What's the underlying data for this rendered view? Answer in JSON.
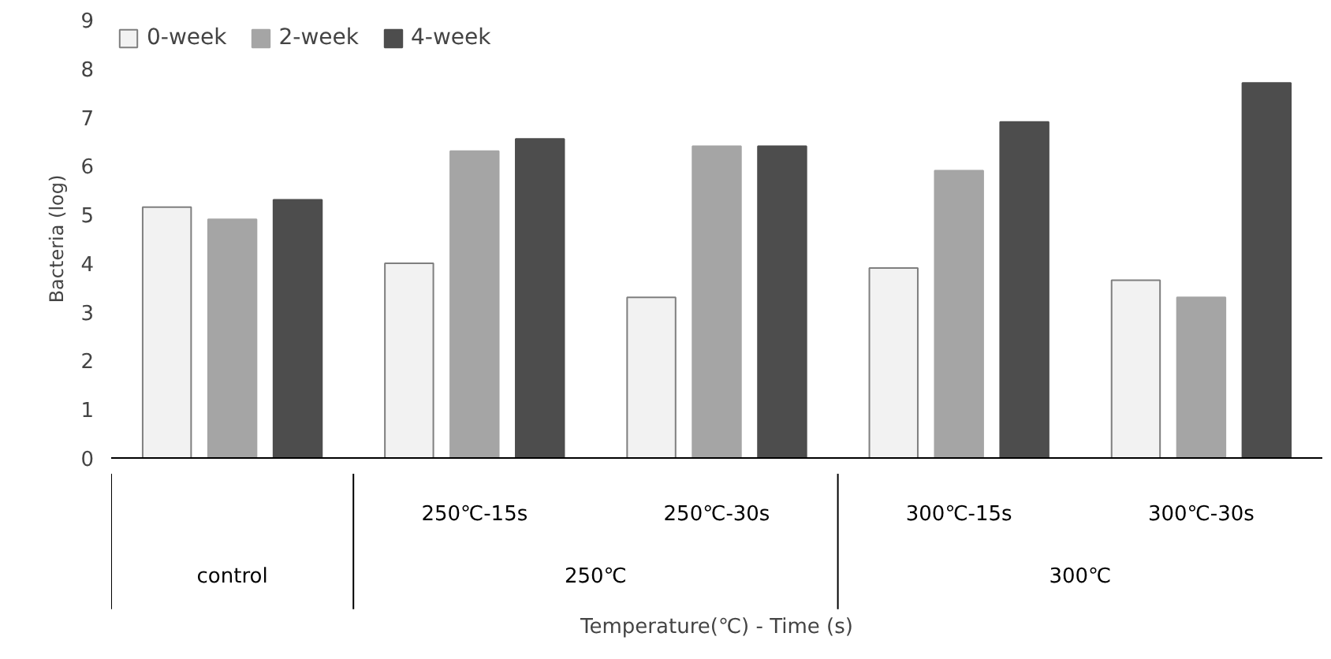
{
  "chart_data": {
    "type": "bar",
    "xlabel": "Temperature(℃) - Time (s)",
    "ylabel": "Bacteria (log)",
    "categories": [
      null,
      "250℃-15s",
      "250℃-30s",
      "300℃-15s",
      "300℃-30s"
    ],
    "series": [
      {
        "name": "0-week",
        "color": "#f2f2f2",
        "values": [
          5.15,
          4.0,
          3.3,
          3.9,
          3.65
        ]
      },
      {
        "name": "2-week",
        "color": "#a5a5a5",
        "values": [
          4.9,
          6.3,
          6.4,
          5.9,
          3.3
        ]
      },
      {
        "name": "4-week",
        "color": "#4d4d4d",
        "values": [
          5.3,
          6.55,
          6.4,
          6.9,
          7.7
        ]
      }
    ],
    "annotations": [
      "control",
      "250℃",
      "300℃"
    ],
    "ylim": [
      0,
      9
    ],
    "yticks": [
      0,
      1,
      2,
      3,
      4,
      5,
      6,
      7,
      8,
      9
    ],
    "grid": false,
    "legend": "top left"
  }
}
